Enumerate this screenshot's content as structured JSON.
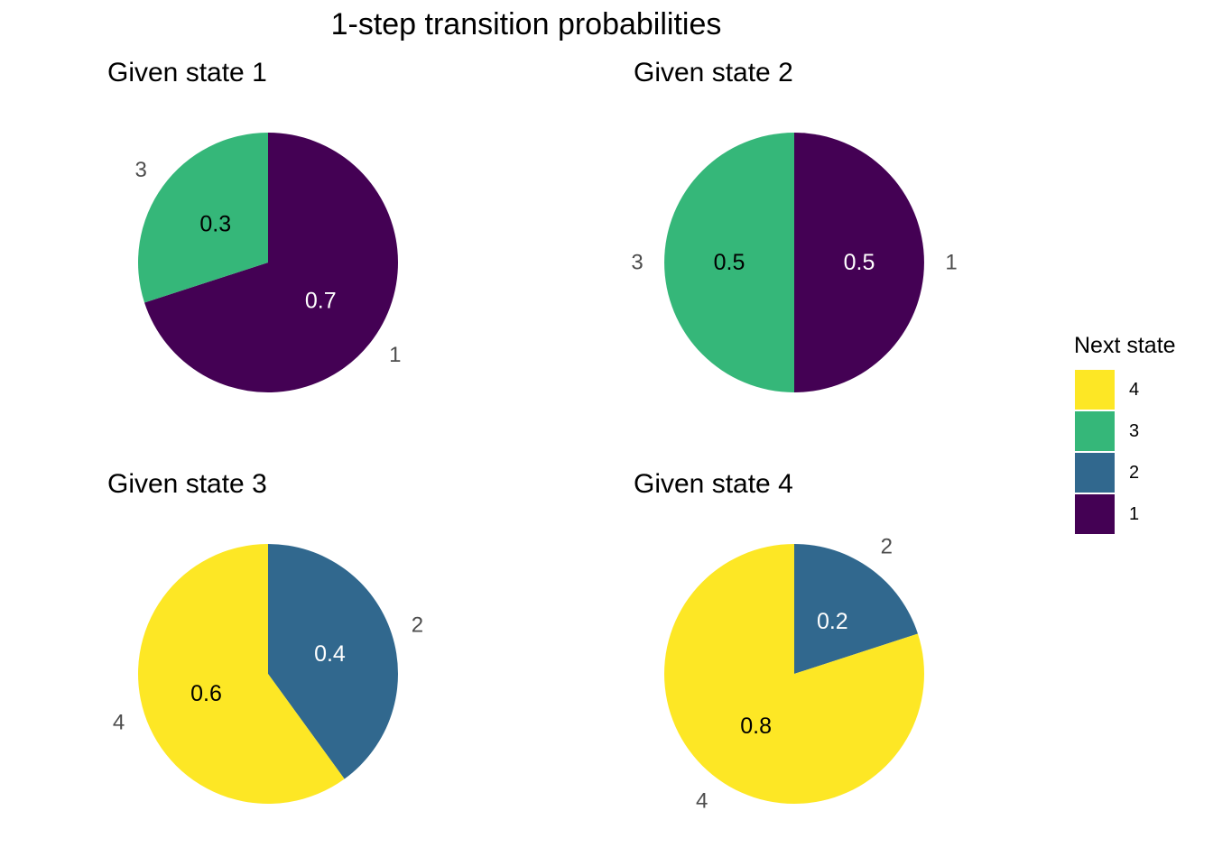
{
  "chart_data": {
    "type": "pie",
    "title": "1-step transition probabilities",
    "legend": {
      "title": "Next state",
      "placement": "right",
      "entries": [
        {
          "label": "4",
          "color": "#FDE725"
        },
        {
          "label": "3",
          "color": "#35B779"
        },
        {
          "label": "2",
          "color": "#31688E"
        },
        {
          "label": "1",
          "color": "#440154"
        }
      ]
    },
    "panels": [
      {
        "title": "Given state 1",
        "slices": [
          {
            "category": "1",
            "value": 0.7,
            "label": "0.7"
          },
          {
            "category": "3",
            "value": 0.3,
            "label": "0.3"
          }
        ]
      },
      {
        "title": "Given state 2",
        "slices": [
          {
            "category": "1",
            "value": 0.5,
            "label": "0.5"
          },
          {
            "category": "3",
            "value": 0.5,
            "label": "0.5"
          }
        ]
      },
      {
        "title": "Given state 3",
        "slices": [
          {
            "category": "2",
            "value": 0.4,
            "label": "0.4"
          },
          {
            "category": "4",
            "value": 0.6,
            "label": "0.6"
          }
        ]
      },
      {
        "title": "Given state 4",
        "slices": [
          {
            "category": "2",
            "value": 0.2,
            "label": "0.2"
          },
          {
            "category": "4",
            "value": 0.8,
            "label": "0.8"
          }
        ]
      }
    ]
  }
}
